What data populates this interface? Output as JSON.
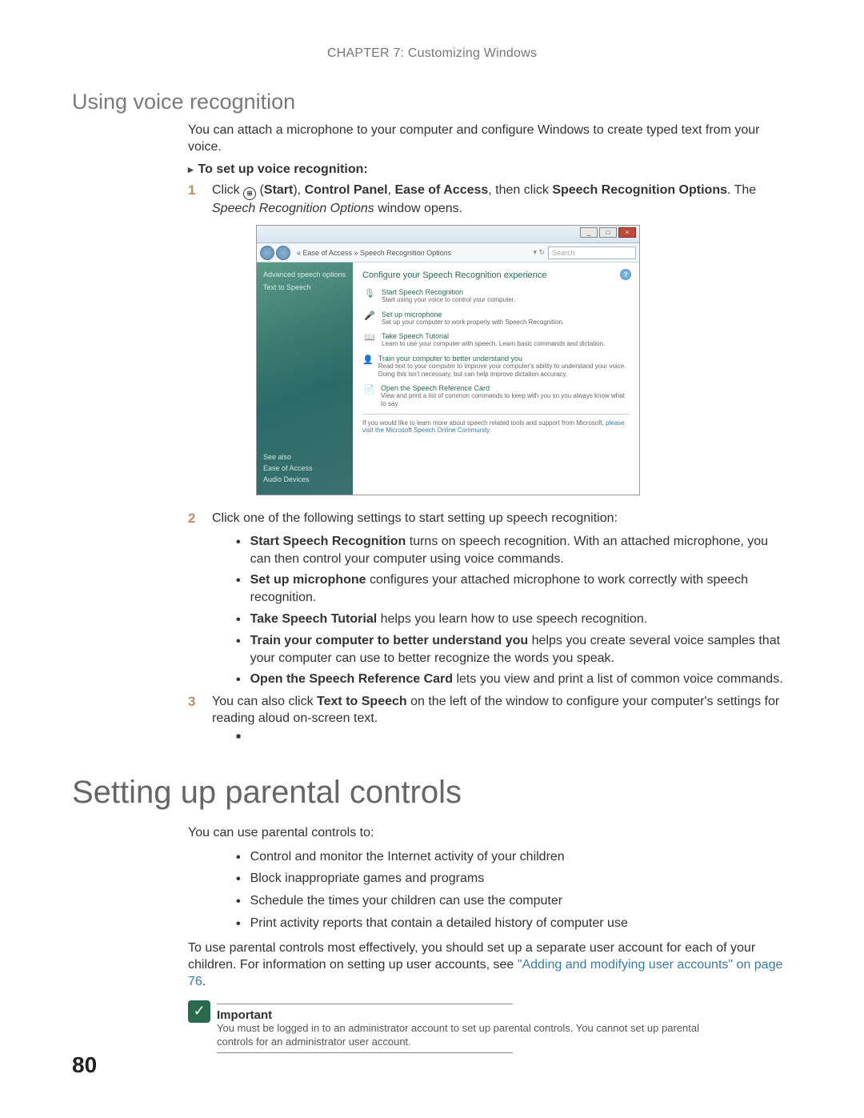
{
  "chapter_header": "CHAPTER 7: Customizing Windows",
  "section1_title": "Using voice recognition",
  "section1_intro": "You can attach a microphone to your computer and configure Windows to create typed text from your voice.",
  "proc_title": "To set up voice recognition:",
  "step1_pre": "Click ",
  "step1_start": "Start",
  "step1_cp": "Control Panel",
  "step1_eoa": "Ease of Access",
  "step1_then": ", then click ",
  "step1_sro": "Speech Recognition Options",
  "step1_post1": ". The ",
  "step1_win": "Speech Recognition Options",
  "step1_post2": " window opens.",
  "screenshot": {
    "breadcrumb": "« Ease of Access » Speech Recognition Options",
    "search_ph": "Search",
    "sidebar_top": [
      "Advanced speech options",
      "Text to Speech"
    ],
    "sidebar_bottom_h": "See also",
    "sidebar_bottom": [
      "Ease of Access",
      "Audio Devices"
    ],
    "content_title": "Configure your Speech Recognition experience",
    "options": [
      {
        "title": "Start Speech Recognition",
        "desc": "Start using your voice to control your computer."
      },
      {
        "title": "Set up microphone",
        "desc": "Set up your computer to work properly with Speech Recognition."
      },
      {
        "title": "Take Speech Tutorial",
        "desc": "Learn to use your computer with speech. Learn basic commands and dictation."
      },
      {
        "title": "Train your computer to better understand you",
        "desc": "Read text to your computer to improve your computer's ability to understand your voice. Doing this isn't necessary, but can help improve dictation accuracy."
      },
      {
        "title": "Open the Speech Reference Card",
        "desc": "View and print a list of common commands to keep with you so you always know what to say."
      }
    ],
    "footer_pre": "If you would like to learn more about speech related tools and support from Microsoft, ",
    "footer_link": "please visit the Microsoft Speech Online Community"
  },
  "step2_text": "Click one of the following settings to start setting up speech recognition:",
  "bullets": [
    {
      "bold": "Start Speech Recognition",
      "text": " turns on speech recognition. With an attached microphone, you can then control your computer using voice commands."
    },
    {
      "bold": "Set up microphone",
      "text": " configures your attached microphone to work correctly with speech recognition."
    },
    {
      "bold": "Take Speech Tutorial",
      "text": " helps you learn how to use speech recognition."
    },
    {
      "bold": "Train your computer to better understand you",
      "text": " helps you create several voice samples that your computer can use to better recognize the words you speak."
    },
    {
      "bold": "Open the Speech Reference Card",
      "text": " lets you view and print a list of common voice commands."
    }
  ],
  "step3_pre": "You can also click ",
  "step3_bold": "Text to Speech",
  "step3_post": " on the left of the window to configure your computer's settings for reading aloud on-screen text.",
  "section2_title": "Setting up parental controls",
  "section2_intro": "You can use parental controls to:",
  "pc_bullets": [
    "Control and monitor the Internet activity of your children",
    "Block inappropriate games and programs",
    "Schedule the times your children can use the computer",
    "Print activity reports that contain a detailed history of computer use"
  ],
  "section2_p2_pre": "To use parental controls most effectively, you should set up a separate user account for each of your children. For information on setting up user accounts, see ",
  "section2_link": "\"Adding and modifying user accounts\" on page 76",
  "section2_p2_post": ".",
  "important_title": "Important",
  "important_text": "You must be logged in to an administrator account to set up parental controls. You cannot set up parental controls for an administrator user account.",
  "page_number": "80"
}
